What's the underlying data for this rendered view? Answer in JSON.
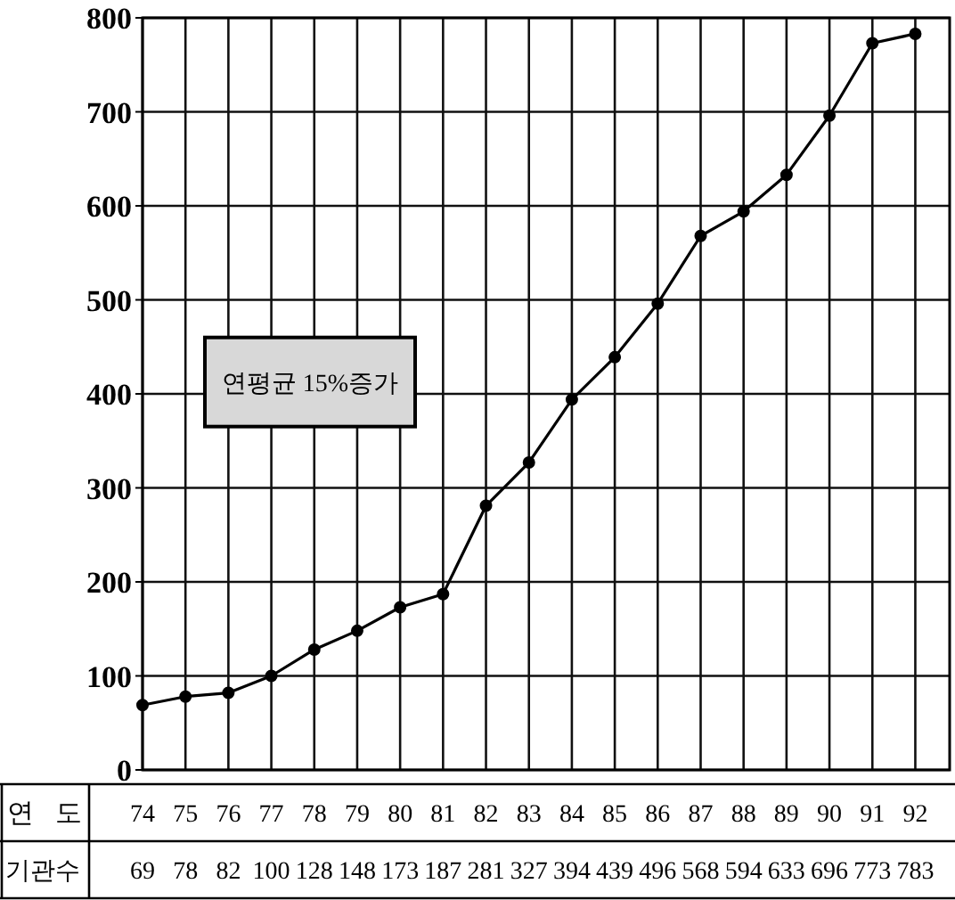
{
  "chart_data": {
    "type": "line",
    "categories": [
      "74",
      "75",
      "76",
      "77",
      "78",
      "79",
      "80",
      "81",
      "82",
      "83",
      "84",
      "85",
      "86",
      "87",
      "88",
      "89",
      "90",
      "91",
      "92"
    ],
    "series": [
      {
        "color": "#000000",
        "values": [
          69,
          78,
          82,
          100,
          128,
          148,
          173,
          187,
          281,
          327,
          394,
          439,
          496,
          568,
          594,
          633,
          696,
          773,
          783
        ]
      }
    ],
    "xlabel": "연 도",
    "ylabel": "기관수",
    "data_labels": true,
    "ylim": [
      0,
      800
    ],
    "yticks": [
      0,
      100,
      200,
      300,
      400,
      500,
      600,
      700,
      800
    ],
    "grid": true,
    "marker": "circle",
    "line_style": "solid",
    "annotations": [
      "연평균 15%증가"
    ]
  }
}
